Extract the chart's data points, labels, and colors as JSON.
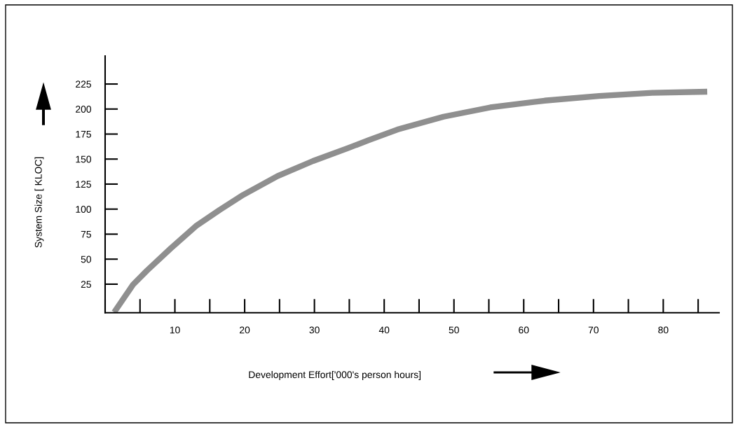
{
  "chart_data": {
    "type": "line",
    "xlabel": "Development Effort['000's person hours]",
    "ylabel": "System Size [ KLOC]",
    "x": [
      1.3,
      4.0,
      6.0,
      9.4,
      13.0,
      16.4,
      19.8,
      24.7,
      29.8,
      34.8,
      37.8,
      41.9,
      48.5,
      55.2,
      63.0,
      70.8,
      78.4,
      86.3
    ],
    "series": [
      {
        "color": "#8f8f8f",
        "values": [
          -3,
          24.5,
          38.6,
          60.7,
          83,
          99.1,
          114.3,
          132.9,
          148.1,
          160.9,
          169,
          179.5,
          192.3,
          201.6,
          208.4,
          213.1,
          216.2,
          217.3
        ]
      }
    ],
    "xlim": [
      0,
      88
    ],
    "ylim": [
      -3.5,
      253
    ],
    "xticks": [
      10,
      20,
      30,
      40,
      50,
      60,
      70,
      80
    ],
    "yticks": [
      25,
      50,
      75,
      100,
      125,
      150,
      175,
      200,
      225
    ],
    "grid": false,
    "legend": false,
    "marker": "none",
    "line_style": "solid"
  }
}
